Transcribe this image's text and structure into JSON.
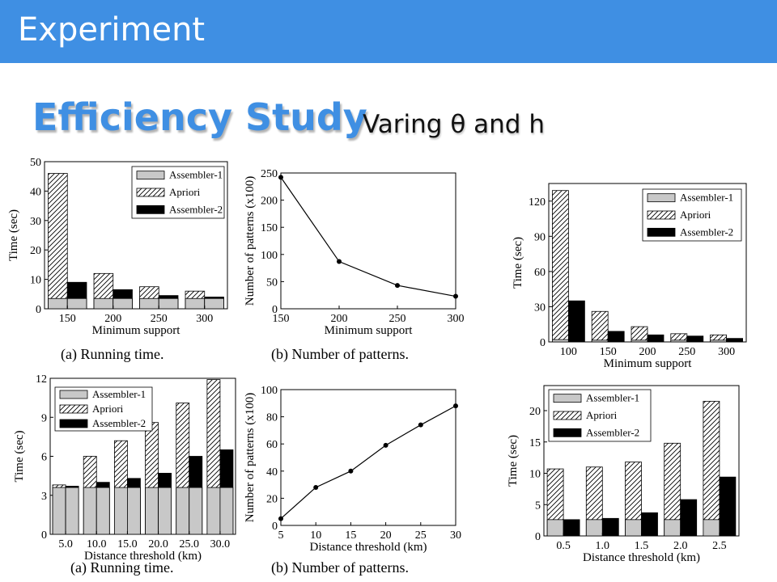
{
  "slide": {
    "title": "Experiment",
    "heading": "Efficiency Study",
    "subheading": "Varing θ and h",
    "colors": {
      "title_bar": "#3f8fe3",
      "heading": "#3f8fe3",
      "assembler1": "#c8c8c8",
      "assembler2": "#000000"
    }
  },
  "chart_data": [
    {
      "id": "c1",
      "type": "bar",
      "pattern": "overlay",
      "categories": [
        "150",
        "200",
        "250",
        "300"
      ],
      "series": [
        {
          "name": "Assembler-1",
          "values": [
            3.5,
            3.5,
            3.5,
            3.5
          ]
        },
        {
          "name": "Apriori",
          "values": [
            46,
            12,
            7.5,
            6
          ]
        },
        {
          "name": "Assembler-2",
          "values": [
            9,
            6.5,
            4.5,
            4
          ]
        }
      ],
      "xlabel": "Minimum support",
      "ylabel": "Time (sec)",
      "ylim": [
        0,
        50
      ],
      "yticks": [
        0,
        10,
        20,
        30,
        40,
        50
      ],
      "caption": "(a)  Running time.",
      "legend": "top-right"
    },
    {
      "id": "c2",
      "type": "line",
      "x": [
        150,
        200,
        250,
        300
      ],
      "y": [
        242,
        87,
        43,
        23
      ],
      "xlim": [
        150,
        300
      ],
      "xticks": [
        150,
        200,
        250,
        300
      ],
      "ylim": [
        0,
        250
      ],
      "yticks": [
        0,
        50,
        100,
        150,
        200,
        250
      ],
      "xlabel": "Minimum support",
      "ylabel": "Number of patterns (x100)",
      "caption": "(b)  Number of patterns."
    },
    {
      "id": "c3",
      "type": "bar",
      "pattern": "side",
      "categories": [
        "100",
        "150",
        "200",
        "250",
        "300"
      ],
      "series": [
        {
          "name": "Assembler-1",
          "values": [
            2,
            1.5,
            1.5,
            1.5,
            1.5
          ]
        },
        {
          "name": "Apriori",
          "values": [
            129,
            26,
            13,
            7,
            6
          ]
        },
        {
          "name": "Assembler-2",
          "values": [
            35,
            9,
            6,
            5,
            3
          ]
        }
      ],
      "xlabel": "Minimum support",
      "ylabel": "Time (sec)",
      "ylim": [
        0,
        135
      ],
      "yticks": [
        0,
        30,
        60,
        90,
        120
      ],
      "caption": "",
      "legend": "top-right"
    },
    {
      "id": "c4",
      "type": "bar",
      "pattern": "overlay",
      "categories": [
        "5.0",
        "10.0",
        "15.0",
        "20.0",
        "25.0",
        "30.0"
      ],
      "series": [
        {
          "name": "Assembler-1",
          "values": [
            3.6,
            3.6,
            3.6,
            3.6,
            3.6,
            3.6
          ]
        },
        {
          "name": "Apriori",
          "values": [
            3.8,
            6,
            7.2,
            8.6,
            10.1,
            11.9
          ]
        },
        {
          "name": "Assembler-2",
          "values": [
            3.7,
            4,
            4.3,
            4.7,
            6,
            6.5
          ]
        }
      ],
      "xlabel": "Distance threshold (km)",
      "ylabel": "Time (sec)",
      "ylim": [
        0,
        12
      ],
      "yticks": [
        0,
        3,
        6,
        9,
        12
      ],
      "caption": "(a)  Running time.",
      "legend": "top-left"
    },
    {
      "id": "c5",
      "type": "line",
      "x": [
        5,
        10,
        15,
        20,
        25,
        30
      ],
      "y": [
        5,
        28,
        40,
        59,
        74,
        88
      ],
      "xlim": [
        5,
        30
      ],
      "xticks": [
        5,
        10,
        15,
        20,
        25,
        30
      ],
      "ylim": [
        0,
        100
      ],
      "yticks": [
        0,
        20,
        40,
        60,
        80,
        100
      ],
      "xlabel": "Distance threshold (km)",
      "ylabel": "Number of patterns (x100)",
      "caption": "(b)  Number of patterns."
    },
    {
      "id": "c6",
      "type": "bar",
      "pattern": "side",
      "categories": [
        "0.5",
        "1.0",
        "1.5",
        "2.0",
        "2.5"
      ],
      "series": [
        {
          "name": "Assembler-1",
          "values": [
            2.6,
            2.6,
            2.6,
            2.6,
            2.6
          ]
        },
        {
          "name": "Apriori",
          "values": [
            10.7,
            11,
            11.8,
            14.8,
            21.5
          ]
        },
        {
          "name": "Assembler-2",
          "values": [
            2.6,
            2.8,
            3.7,
            5.8,
            9.4
          ]
        }
      ],
      "xlabel": "Distance threshold (km)",
      "ylabel": "Time (sec)",
      "ylim": [
        0,
        24
      ],
      "yticks": [
        0,
        5,
        10,
        15,
        20
      ],
      "caption": "",
      "legend": "top-left"
    }
  ]
}
